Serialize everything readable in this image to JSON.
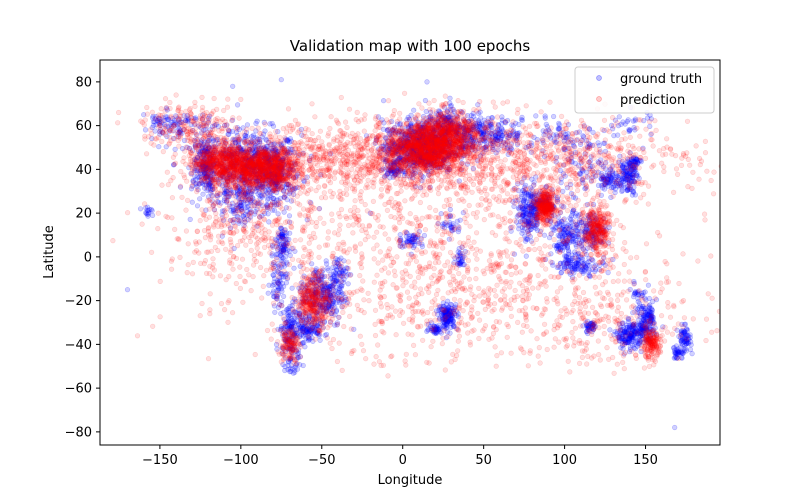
{
  "chart_data": {
    "type": "scatter",
    "title": "Validation map with 100 epochs",
    "xlabel": "Longitude",
    "ylabel": "Latitude",
    "xlim": [
      -187,
      196
    ],
    "ylim": [
      -86,
      90
    ],
    "xticks": [
      -150,
      -100,
      -50,
      0,
      50,
      100,
      150
    ],
    "yticks": [
      -80,
      -60,
      -40,
      -20,
      0,
      20,
      40,
      60,
      80
    ],
    "xtick_labels": [
      "−150",
      "−100",
      "−50",
      "0",
      "50",
      "100",
      "150"
    ],
    "ytick_labels": [
      "−80",
      "−60",
      "−40",
      "−20",
      "0",
      "20",
      "40",
      "60",
      "80"
    ],
    "grid": false,
    "legend_position": "top-right",
    "series": [
      {
        "name": "ground truth",
        "color": "#0000ff",
        "clusters": [
          {
            "x": -95,
            "y": 40,
            "sx": 16,
            "sy": 9,
            "n": 700
          },
          {
            "x": -122,
            "y": 42,
            "sx": 3,
            "sy": 6,
            "n": 180
          },
          {
            "x": -80,
            "y": 38,
            "sx": 6,
            "sy": 7,
            "n": 200
          },
          {
            "x": -100,
            "y": 22,
            "sx": 5,
            "sy": 3,
            "n": 60
          },
          {
            "x": -135,
            "y": 59,
            "sx": 10,
            "sy": 4,
            "n": 80
          },
          {
            "x": -150,
            "y": 62,
            "sx": 4,
            "sy": 2,
            "n": 30
          },
          {
            "x": -157,
            "y": 20,
            "sx": 1.5,
            "sy": 1,
            "n": 14
          },
          {
            "x": -74,
            "y": 5,
            "sx": 2.5,
            "sy": 6,
            "n": 90
          },
          {
            "x": -77,
            "y": -12,
            "sx": 2.5,
            "sy": 5,
            "n": 60
          },
          {
            "x": -70,
            "y": -33,
            "sx": 3,
            "sy": 6,
            "n": 130
          },
          {
            "x": -68,
            "y": -48,
            "sx": 2.5,
            "sy": 4,
            "n": 40
          },
          {
            "x": -50,
            "y": -18,
            "sx": 7,
            "sy": 7,
            "n": 260
          },
          {
            "x": -58,
            "y": -33,
            "sx": 4,
            "sy": 3,
            "n": 90
          },
          {
            "x": -40,
            "y": -8,
            "sx": 3,
            "sy": 4,
            "n": 70
          },
          {
            "x": 10,
            "y": 50,
            "sx": 11,
            "sy": 6,
            "n": 650
          },
          {
            "x": 35,
            "y": 56,
            "sx": 14,
            "sy": 5,
            "n": 250
          },
          {
            "x": 55,
            "y": 56,
            "sx": 14,
            "sy": 4,
            "n": 160
          },
          {
            "x": -5,
            "y": 40,
            "sx": 3,
            "sy": 2,
            "n": 60
          },
          {
            "x": 25,
            "y": 62,
            "sx": 5,
            "sy": 3,
            "n": 60
          },
          {
            "x": 78,
            "y": 20,
            "sx": 4,
            "sy": 7,
            "n": 200
          },
          {
            "x": 88,
            "y": 24,
            "sx": 4,
            "sy": 3,
            "n": 80
          },
          {
            "x": 102,
            "y": 8,
            "sx": 5,
            "sy": 6,
            "n": 180
          },
          {
            "x": 118,
            "y": 12,
            "sx": 4,
            "sy": 4,
            "n": 90
          },
          {
            "x": 110,
            "y": -4,
            "sx": 8,
            "sy": 2,
            "n": 90
          },
          {
            "x": 128,
            "y": 36,
            "sx": 3,
            "sy": 3,
            "n": 70
          },
          {
            "x": 139,
            "y": 37,
            "sx": 3,
            "sy": 4,
            "n": 120
          },
          {
            "x": 143,
            "y": 43,
            "sx": 2,
            "sy": 1.5,
            "n": 40
          },
          {
            "x": 110,
            "y": 38,
            "sx": 10,
            "sy": 6,
            "n": 60
          },
          {
            "x": 100,
            "y": 53,
            "sx": 12,
            "sy": 4,
            "n": 70
          },
          {
            "x": 140,
            "y": 60,
            "sx": 8,
            "sy": 4,
            "n": 30
          },
          {
            "x": 28,
            "y": -27,
            "sx": 3,
            "sy": 3,
            "n": 150
          },
          {
            "x": 20,
            "y": -33,
            "sx": 2,
            "sy": 1,
            "n": 40
          },
          {
            "x": 5,
            "y": 8,
            "sx": 4,
            "sy": 2,
            "n": 50
          },
          {
            "x": 36,
            "y": -1,
            "sx": 2,
            "sy": 2,
            "n": 30
          },
          {
            "x": 30,
            "y": 15,
            "sx": 3,
            "sy": 3,
            "n": 30
          },
          {
            "x": 140,
            "y": -36,
            "sx": 4,
            "sy": 3,
            "n": 160
          },
          {
            "x": 150,
            "y": -33,
            "sx": 3,
            "sy": 3,
            "n": 100
          },
          {
            "x": 152,
            "y": -27,
            "sx": 2,
            "sy": 2,
            "n": 50
          },
          {
            "x": 116,
            "y": -32,
            "sx": 2,
            "sy": 1.5,
            "n": 40
          },
          {
            "x": 146,
            "y": -20,
            "sx": 3,
            "sy": 5,
            "n": 40
          },
          {
            "x": 174,
            "y": -38,
            "sx": 2,
            "sy": 3,
            "n": 70
          },
          {
            "x": 170,
            "y": -44,
            "sx": 2,
            "sy": 1.5,
            "n": 30
          }
        ],
        "outliers": [
          [
            -170,
            -15
          ],
          [
            -15,
            64
          ],
          [
            -105,
            78
          ],
          [
            -75,
            81
          ],
          [
            -160,
            65
          ],
          [
            15,
            80
          ],
          [
            -162,
            22
          ],
          [
            -130,
            25
          ],
          [
            168,
            -78
          ],
          [
            -20,
            20
          ],
          [
            -90,
            14
          ],
          [
            -110,
            60
          ]
        ]
      },
      {
        "name": "prediction",
        "color": "#ff0000",
        "clusters": [
          {
            "x": -95,
            "y": 41,
            "sx": 15,
            "sy": 5,
            "n": 1100
          },
          {
            "x": -115,
            "y": 45,
            "sx": 7,
            "sy": 4,
            "n": 300
          },
          {
            "x": -78,
            "y": 40,
            "sx": 6,
            "sy": 4,
            "n": 220
          },
          {
            "x": 15,
            "y": 50,
            "sx": 12,
            "sy": 6,
            "n": 1200
          },
          {
            "x": 30,
            "y": 57,
            "sx": 9,
            "sy": 5,
            "n": 350
          },
          {
            "x": 88,
            "y": 23,
            "sx": 3.5,
            "sy": 3.5,
            "n": 320
          },
          {
            "x": 120,
            "y": 12,
            "sx": 4,
            "sy": 6,
            "n": 320
          },
          {
            "x": -55,
            "y": -20,
            "sx": 5,
            "sy": 6,
            "n": 320
          },
          {
            "x": -70,
            "y": -40,
            "sx": 3,
            "sy": 4,
            "n": 130
          },
          {
            "x": 153,
            "y": -40,
            "sx": 3,
            "sy": 3,
            "n": 160
          },
          {
            "x": -20,
            "y": 45,
            "sx": 45,
            "sy": 8,
            "n": 900
          },
          {
            "x": 80,
            "y": 45,
            "sx": 50,
            "sy": 10,
            "n": 800
          },
          {
            "x": 0,
            "y": 5,
            "sx": 70,
            "sy": 20,
            "n": 900
          },
          {
            "x": 40,
            "y": -20,
            "sx": 60,
            "sy": 15,
            "n": 400
          },
          {
            "x": 130,
            "y": -30,
            "sx": 25,
            "sy": 10,
            "n": 200
          },
          {
            "x": -100,
            "y": 15,
            "sx": 20,
            "sy": 12,
            "n": 250
          },
          {
            "x": -130,
            "y": 60,
            "sx": 15,
            "sy": 5,
            "n": 200
          }
        ],
        "outliers": [
          [
            -140,
            74
          ],
          [
            -100,
            72
          ],
          [
            10,
            70
          ],
          [
            25,
            69
          ],
          [
            -75,
            -48
          ],
          [
            150,
            45
          ],
          [
            -120,
            10
          ],
          [
            30,
            -48
          ]
        ]
      }
    ]
  }
}
